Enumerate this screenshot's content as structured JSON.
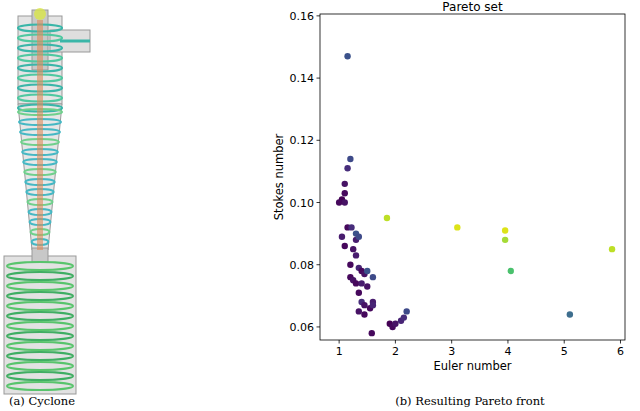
{
  "chart_data": {
    "type": "scatter",
    "title": "Pareto set",
    "x_label": "Euler number",
    "y_label": "Stokes number",
    "x": [
      1.15,
      1.2,
      1.15,
      1.1,
      1.1,
      1.05,
      1.1,
      1.0,
      1.05,
      1.15,
      1.22,
      1.3,
      1.3,
      1.35,
      1.1,
      1.25,
      1.3,
      1.2,
      1.35,
      1.4,
      1.45,
      1.5,
      1.6,
      1.2,
      1.25,
      1.3,
      1.4,
      1.5,
      1.35,
      1.4,
      1.45,
      1.6,
      1.55,
      1.35,
      1.45,
      1.6,
      1.58,
      1.9,
      1.95,
      2.0,
      2.1,
      2.15,
      2.2,
      1.85,
      3.1,
      3.95,
      3.95,
      4.05,
      5.1,
      5.85
    ],
    "values": [
      0.147,
      0.114,
      0.111,
      0.106,
      0.103,
      0.101,
      0.1,
      0.1,
      0.089,
      0.092,
      0.092,
      0.09,
      0.088,
      0.089,
      0.086,
      0.085,
      0.083,
      0.08,
      0.079,
      0.078,
      0.077,
      0.078,
      0.076,
      0.076,
      0.075,
      0.074,
      0.074,
      0.073,
      0.071,
      0.068,
      0.067,
      0.068,
      0.066,
      0.065,
      0.064,
      0.067,
      0.058,
      0.061,
      0.06,
      0.061,
      0.062,
      0.063,
      0.065,
      0.095,
      0.092,
      0.091,
      0.088,
      0.078,
      0.064,
      0.085
    ],
    "colors": [
      "#3b528b",
      "#3e4a89",
      "#472d7b",
      "#471365",
      "#46085c",
      "#440154",
      "#471365",
      "#46085c",
      "#481c6e",
      "#46085c",
      "#472d7b",
      "#3b528b",
      "#481c6e",
      "#3e4a89",
      "#46085c",
      "#471365",
      "#481c6e",
      "#46085c",
      "#482475",
      "#46085c",
      "#471365",
      "#3b528b",
      "#3e4a89",
      "#46085c",
      "#471365",
      "#46085c",
      "#481c6e",
      "#471365",
      "#46085c",
      "#472d7b",
      "#471365",
      "#481c6e",
      "#46085c",
      "#471365",
      "#46085c",
      "#482475",
      "#46085c",
      "#440154",
      "#46085c",
      "#471365",
      "#482475",
      "#472d7b",
      "#3e4a89",
      "#bddf26",
      "#dde318",
      "#dde318",
      "#a5db36",
      "#4ac16d",
      "#3e6e8e",
      "#bddf26"
    ],
    "marker": "circle",
    "xlim": [
      0.66,
      6.08
    ],
    "ylim": [
      0.0558,
      0.1606
    ],
    "xticks": [
      1,
      2,
      3,
      4,
      5,
      6
    ],
    "yticks": [
      0.06,
      0.08,
      {
        "value": 0.1,
        "label": "0.10"
      },
      0.12,
      0.14,
      0.16
    ],
    "grid": false
  },
  "captions": [
    "(a) Cyclone",
    "(b) Resulting Pareto front"
  ]
}
